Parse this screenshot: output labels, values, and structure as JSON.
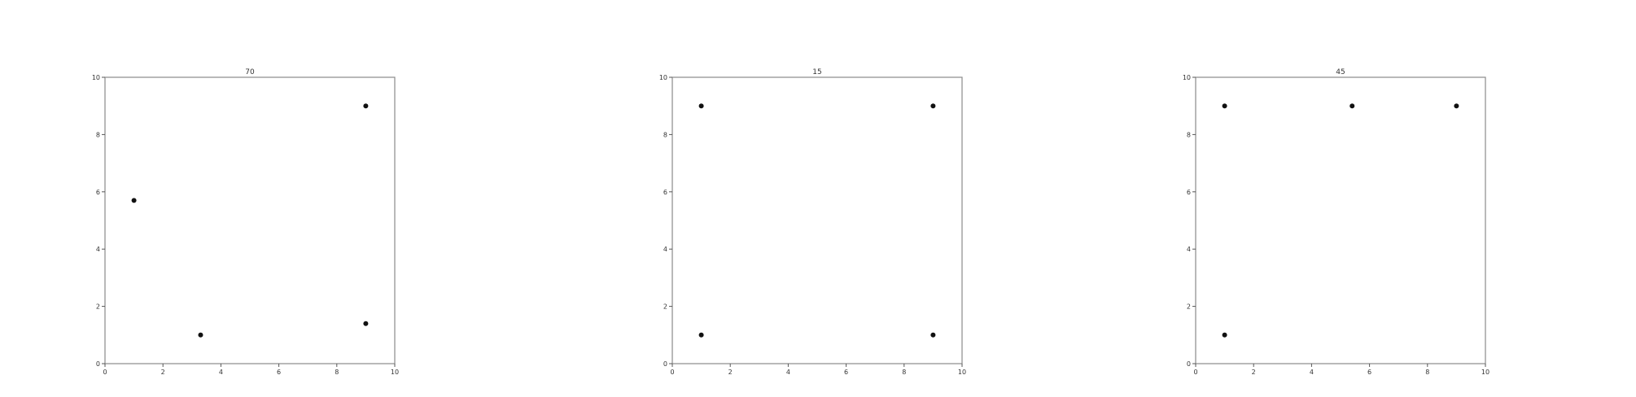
{
  "chart_data": [
    {
      "type": "scatter",
      "title": "70",
      "xlabel": "",
      "ylabel": "",
      "xlim": [
        0,
        10
      ],
      "ylim": [
        0,
        10
      ],
      "xticks": [
        "0",
        "2",
        "4",
        "6",
        "8",
        "10"
      ],
      "yticks": [
        "0",
        "2",
        "4",
        "6",
        "8",
        "10"
      ],
      "grid": false,
      "points": [
        {
          "x": 1.0,
          "y": 5.7
        },
        {
          "x": 3.3,
          "y": 1.0
        },
        {
          "x": 9.0,
          "y": 9.0
        },
        {
          "x": 9.0,
          "y": 1.4
        }
      ]
    },
    {
      "type": "scatter",
      "title": "15",
      "xlabel": "",
      "ylabel": "",
      "xlim": [
        0,
        10
      ],
      "ylim": [
        0,
        10
      ],
      "xticks": [
        "0",
        "2",
        "4",
        "6",
        "8",
        "10"
      ],
      "yticks": [
        "0",
        "2",
        "4",
        "6",
        "8",
        "10"
      ],
      "grid": false,
      "points": [
        {
          "x": 1.0,
          "y": 9.0
        },
        {
          "x": 9.0,
          "y": 9.0
        },
        {
          "x": 1.0,
          "y": 1.0
        },
        {
          "x": 9.0,
          "y": 1.0
        }
      ]
    },
    {
      "type": "scatter",
      "title": "45",
      "xlabel": "",
      "ylabel": "",
      "xlim": [
        0,
        10
      ],
      "ylim": [
        0,
        10
      ],
      "xticks": [
        "0",
        "2",
        "4",
        "6",
        "8",
        "10"
      ],
      "yticks": [
        "0",
        "2",
        "4",
        "6",
        "8",
        "10"
      ],
      "grid": false,
      "points": [
        {
          "x": 1.0,
          "y": 9.0
        },
        {
          "x": 5.4,
          "y": 9.0
        },
        {
          "x": 9.0,
          "y": 9.0
        },
        {
          "x": 1.0,
          "y": 1.0
        }
      ]
    }
  ]
}
